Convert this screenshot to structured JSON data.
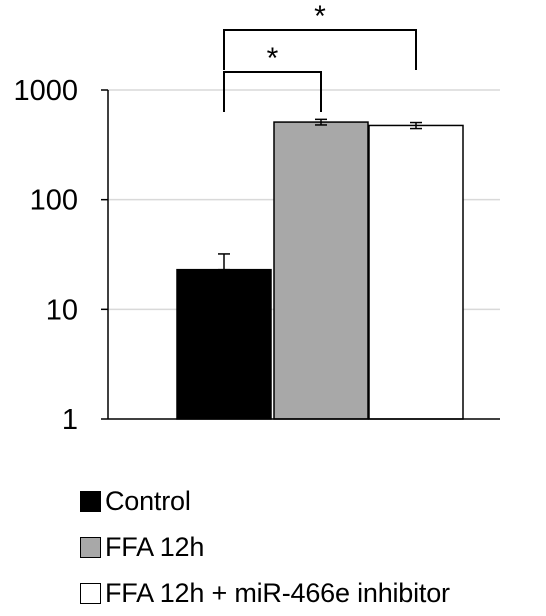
{
  "chart_data": {
    "type": "bar",
    "title": "",
    "xlabel": "",
    "ylabel": "",
    "yscale": "log",
    "ylim": [
      1,
      1000
    ],
    "yticks": [
      "1",
      "10",
      "100",
      "1000"
    ],
    "ytick_values": [
      1,
      10,
      100,
      1000
    ],
    "grid": true,
    "legend_position": "bottom",
    "categories": [
      "Control",
      "FFA 12h",
      "FFA 12h + miR-466e inhibitor"
    ],
    "values": [
      23,
      510,
      475
    ],
    "error_upper": [
      32,
      540,
      505
    ],
    "error_lower": [
      23,
      480,
      445
    ],
    "colors": [
      "#000000",
      "#a8a8a8",
      "#ffffff"
    ],
    "significance": [
      {
        "from": 0,
        "to": 1,
        "label": "*"
      },
      {
        "from": 0,
        "to": 2,
        "label": "*"
      }
    ]
  }
}
